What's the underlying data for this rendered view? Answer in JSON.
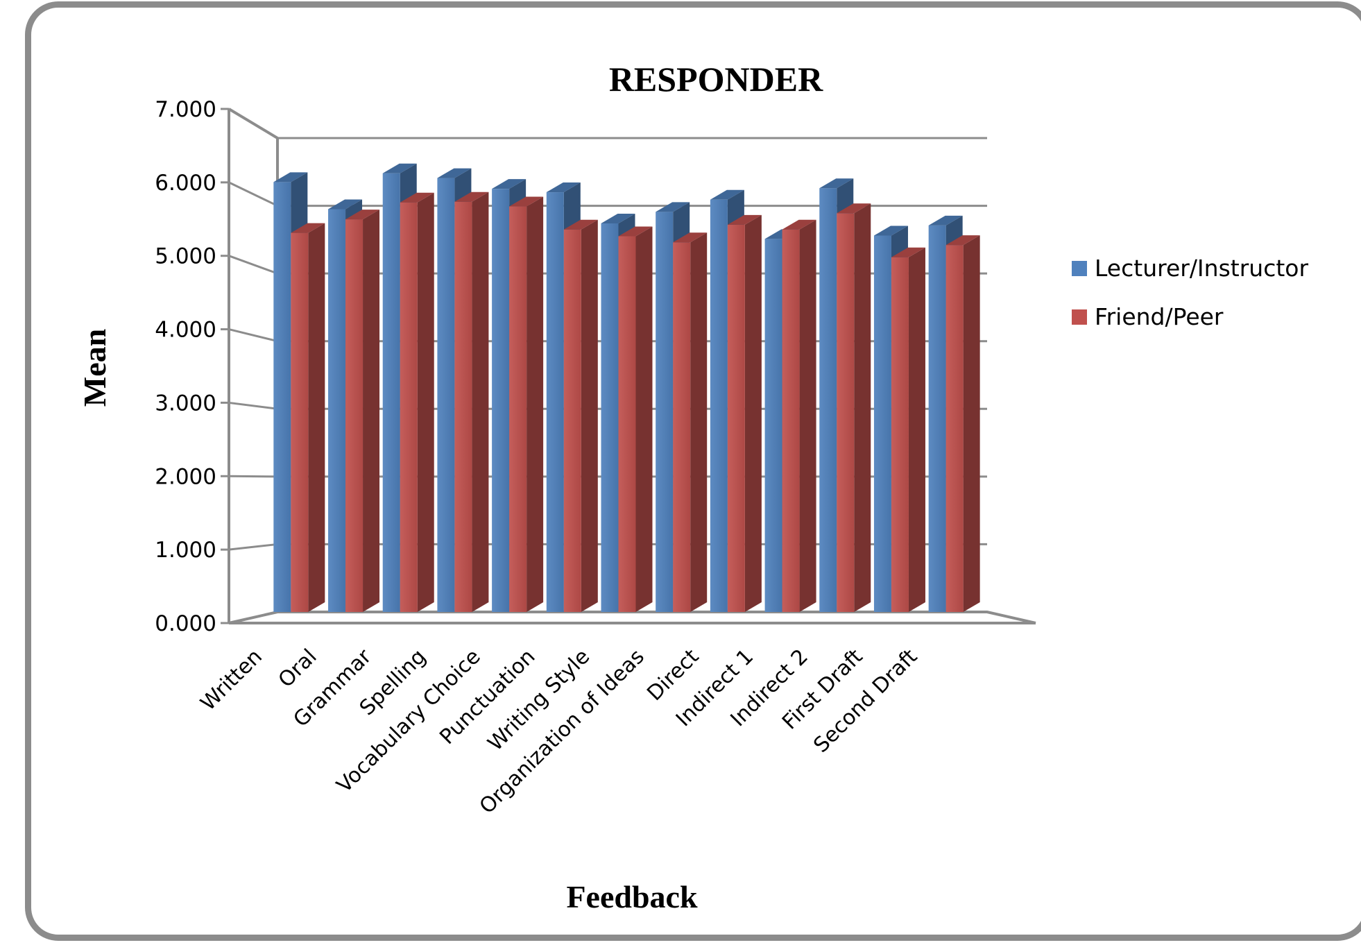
{
  "chart_data": {
    "type": "bar",
    "title": "RESPONDER",
    "xlabel": "Feedback",
    "ylabel": "Mean",
    "ylim": [
      0,
      7
    ],
    "yticks": [
      "0.000",
      "1.000",
      "2.000",
      "3.000",
      "4.000",
      "5.000",
      "6.000",
      "7.000"
    ],
    "grid": true,
    "legend": "right",
    "categories": [
      "Written",
      "Oral",
      "Grammar",
      "Spelling",
      "Vocabulary Choice",
      "Punctuation",
      "Writing Style",
      "Organization of Ideas",
      "Direct",
      "Indirect 1",
      "Indirect 2",
      "First Draft",
      "Second Draft"
    ],
    "series": [
      {
        "name": "Lecturer/Instructor",
        "color": "#4f81bd",
        "values": [
          6.35,
          5.95,
          6.48,
          6.41,
          6.25,
          6.2,
          5.74,
          5.91,
          6.09,
          5.51,
          6.26,
          5.56,
          5.71
        ]
      },
      {
        "name": "Friend/Peer",
        "color": "#c0504d",
        "values": [
          5.6,
          5.8,
          6.05,
          6.06,
          5.99,
          5.65,
          5.55,
          5.46,
          5.72,
          5.65,
          5.89,
          5.24,
          5.42
        ]
      }
    ]
  }
}
